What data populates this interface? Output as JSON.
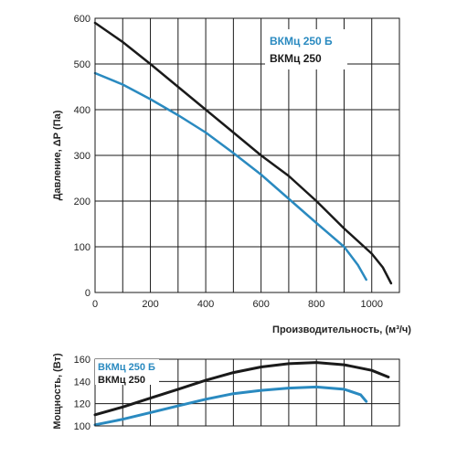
{
  "chart_data": [
    {
      "type": "line",
      "xlabel": "Производительность, (м³/ч)",
      "ylabel": "Давление, ΔР (Па)",
      "xlim": [
        0,
        1100
      ],
      "ylim": [
        0,
        600
      ],
      "xticks": [
        0,
        200,
        400,
        600,
        800,
        1000
      ],
      "yticks": [
        0,
        100,
        200,
        300,
        400,
        500,
        600
      ],
      "grid": true,
      "legend_position": "top-right",
      "series": [
        {
          "name": "ВКМц 250 Б",
          "color": "#2a8ac0",
          "x": [
            0,
            100,
            200,
            300,
            400,
            500,
            600,
            700,
            800,
            900,
            950,
            980
          ],
          "y": [
            480,
            455,
            423,
            388,
            350,
            305,
            258,
            205,
            152,
            100,
            60,
            28
          ]
        },
        {
          "name": "ВКМц 250",
          "color": "#1a1a1a",
          "x": [
            0,
            100,
            200,
            300,
            400,
            500,
            600,
            700,
            800,
            900,
            1000,
            1040,
            1070
          ],
          "y": [
            590,
            548,
            500,
            450,
            400,
            350,
            300,
            255,
            200,
            140,
            85,
            55,
            20
          ]
        }
      ]
    },
    {
      "type": "line",
      "xlabel": "",
      "ylabel": "Мощность, (Вт)",
      "xlim": [
        0,
        1100
      ],
      "ylim": [
        100,
        160
      ],
      "yticks": [
        100,
        120,
        140,
        160
      ],
      "grid": true,
      "legend_position": "top-left",
      "series": [
        {
          "name": "ВКМц 250 Б",
          "color": "#2a8ac0",
          "x": [
            0,
            100,
            200,
            300,
            400,
            500,
            600,
            700,
            800,
            900,
            960,
            980
          ],
          "y": [
            101,
            106,
            112,
            118,
            124,
            129,
            132,
            134,
            135,
            133,
            128,
            122
          ]
        },
        {
          "name": "ВКМц 250",
          "color": "#1a1a1a",
          "x": [
            0,
            100,
            200,
            300,
            400,
            500,
            600,
            700,
            800,
            900,
            1000,
            1060
          ],
          "y": [
            110,
            117,
            125,
            133,
            141,
            148,
            153,
            156,
            157,
            155,
            150,
            144
          ]
        }
      ]
    }
  ]
}
